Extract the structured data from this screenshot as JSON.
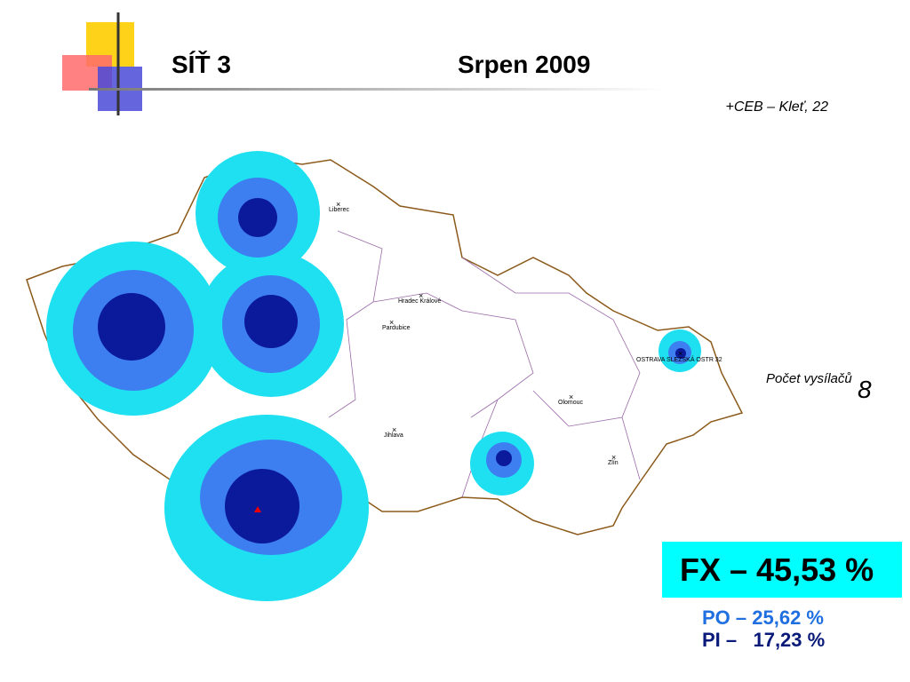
{
  "header": {
    "title": "SÍŤ 3",
    "date": "Srpen 2009",
    "subtitle": "+CEB – Kleť, 22"
  },
  "map": {
    "cities": [
      {
        "label": "Liberec"
      },
      {
        "label": "Hradec Králové"
      },
      {
        "label": "Pardubice"
      },
      {
        "label": "Jihlava"
      },
      {
        "label": "Olomouc"
      },
      {
        "label": "Zlín"
      },
      {
        "label": "OSTRAVA SLEZSKÁ OSTR 32"
      }
    ]
  },
  "transmitters": {
    "label": "Počet vysílačů",
    "count": "8"
  },
  "coverage": {
    "fx": "FX – 45,53 %",
    "po": "PO – 25,62 %",
    "pi": "PI –   17,23 %"
  }
}
